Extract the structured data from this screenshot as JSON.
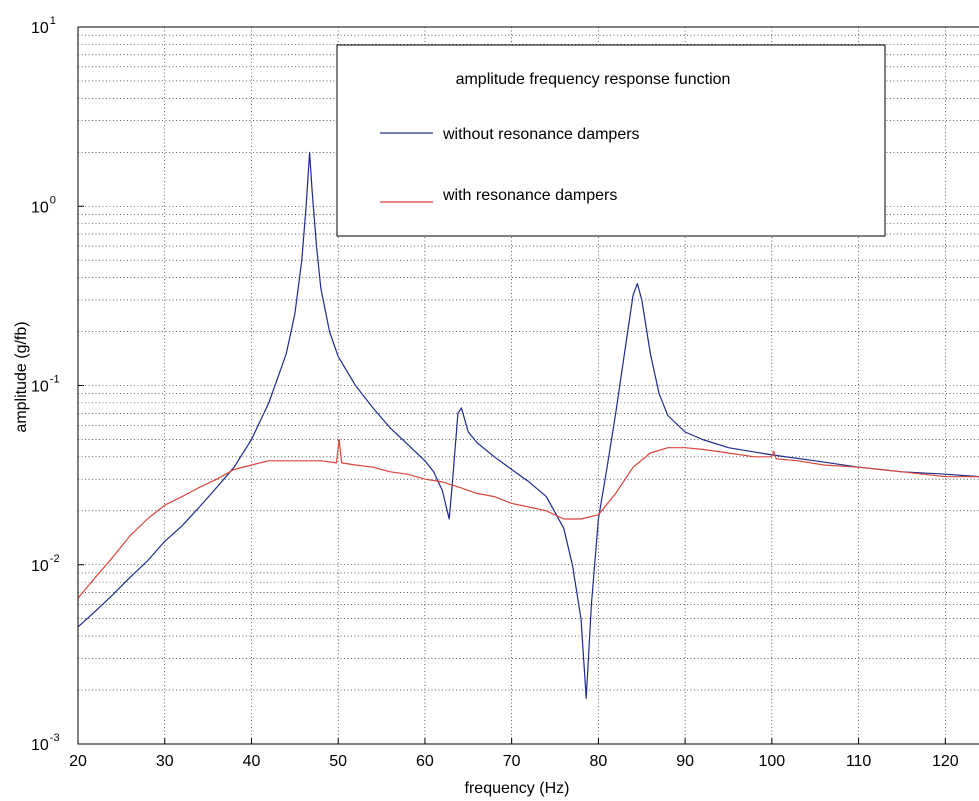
{
  "chart_data": {
    "type": "line",
    "title": "",
    "xlabel": "frequency  (Hz)",
    "ylabel": "amplitude  (g/fb)",
    "x_scale": "linear",
    "y_scale": "log",
    "xlim": [
      20,
      124
    ],
    "ylim": [
      0.001,
      10
    ],
    "grid": true,
    "legend_position": "top-right",
    "x_ticks": [
      "20",
      "30",
      "40",
      "50",
      "60",
      "70",
      "80",
      "90",
      "100",
      "110",
      "120"
    ],
    "y_ticks": [
      {
        "base": "10",
        "exp": "1"
      },
      {
        "base": "10",
        "exp": "0"
      },
      {
        "base": "10",
        "exp": "-1"
      },
      {
        "base": "10",
        "exp": "-2"
      },
      {
        "base": "10",
        "exp": "-3"
      }
    ],
    "legend_title": "amplitude frequency response function",
    "series": [
      {
        "name": "without resonance dampers",
        "color": "#1f2a8c",
        "points": [
          [
            20,
            0.0045
          ],
          [
            22,
            0.0055
          ],
          [
            24,
            0.0068
          ],
          [
            26,
            0.0085
          ],
          [
            28,
            0.0105
          ],
          [
            30,
            0.0135
          ],
          [
            32,
            0.0165
          ],
          [
            34,
            0.021
          ],
          [
            36,
            0.027
          ],
          [
            38,
            0.035
          ],
          [
            40,
            0.05
          ],
          [
            42,
            0.08
          ],
          [
            44,
            0.15
          ],
          [
            45,
            0.25
          ],
          [
            45.8,
            0.5
          ],
          [
            46.3,
            1.0
          ],
          [
            46.7,
            2.0
          ],
          [
            47.0,
            1.2
          ],
          [
            47.5,
            0.6
          ],
          [
            48,
            0.35
          ],
          [
            49,
            0.2
          ],
          [
            50,
            0.145
          ],
          [
            52,
            0.1
          ],
          [
            54,
            0.075
          ],
          [
            56,
            0.058
          ],
          [
            58,
            0.047
          ],
          [
            60,
            0.038
          ],
          [
            61,
            0.033
          ],
          [
            62,
            0.026
          ],
          [
            62.8,
            0.018
          ],
          [
            63.2,
            0.03
          ],
          [
            63.8,
            0.07
          ],
          [
            64.2,
            0.075
          ],
          [
            65,
            0.055
          ],
          [
            66,
            0.048
          ],
          [
            68,
            0.04
          ],
          [
            70,
            0.034
          ],
          [
            72,
            0.029
          ],
          [
            74,
            0.024
          ],
          [
            76,
            0.016
          ],
          [
            77,
            0.01
          ],
          [
            78,
            0.005
          ],
          [
            78.6,
            0.0018
          ],
          [
            79.2,
            0.006
          ],
          [
            80,
            0.018
          ],
          [
            81,
            0.035
          ],
          [
            82,
            0.07
          ],
          [
            83,
            0.15
          ],
          [
            84,
            0.32
          ],
          [
            84.5,
            0.37
          ],
          [
            85,
            0.3
          ],
          [
            86,
            0.15
          ],
          [
            87,
            0.09
          ],
          [
            88,
            0.068
          ],
          [
            90,
            0.055
          ],
          [
            92,
            0.05
          ],
          [
            95,
            0.045
          ],
          [
            100,
            0.041
          ],
          [
            105,
            0.038
          ],
          [
            110,
            0.035
          ],
          [
            115,
            0.033
          ],
          [
            120,
            0.032
          ],
          [
            124,
            0.031
          ]
        ]
      },
      {
        "name": "with resonance dampers",
        "color": "#d9453b",
        "points": [
          [
            20,
            0.0065
          ],
          [
            22,
            0.0085
          ],
          [
            24,
            0.011
          ],
          [
            26,
            0.0145
          ],
          [
            28,
            0.018
          ],
          [
            30,
            0.0215
          ],
          [
            32,
            0.024
          ],
          [
            34,
            0.027
          ],
          [
            36,
            0.03
          ],
          [
            38,
            0.034
          ],
          [
            40,
            0.036
          ],
          [
            42,
            0.038
          ],
          [
            44,
            0.038
          ],
          [
            46,
            0.038
          ],
          [
            48,
            0.038
          ],
          [
            49.8,
            0.037
          ],
          [
            50.1,
            0.05
          ],
          [
            50.4,
            0.037
          ],
          [
            52,
            0.036
          ],
          [
            54,
            0.035
          ],
          [
            56,
            0.033
          ],
          [
            58,
            0.032
          ],
          [
            60,
            0.03
          ],
          [
            62,
            0.029
          ],
          [
            64,
            0.027
          ],
          [
            66,
            0.025
          ],
          [
            68,
            0.024
          ],
          [
            70,
            0.022
          ],
          [
            72,
            0.021
          ],
          [
            74,
            0.02
          ],
          [
            76,
            0.018
          ],
          [
            78,
            0.018
          ],
          [
            80,
            0.019
          ],
          [
            82,
            0.025
          ],
          [
            84,
            0.035
          ],
          [
            86,
            0.042
          ],
          [
            88,
            0.045
          ],
          [
            90,
            0.045
          ],
          [
            92,
            0.044
          ],
          [
            95,
            0.042
          ],
          [
            98,
            0.04
          ],
          [
            100,
            0.04
          ],
          [
            100.2,
            0.043
          ],
          [
            100.5,
            0.039
          ],
          [
            103,
            0.038
          ],
          [
            106,
            0.036
          ],
          [
            110,
            0.035
          ],
          [
            115,
            0.033
          ],
          [
            120,
            0.031
          ],
          [
            124,
            0.031
          ]
        ]
      }
    ]
  }
}
